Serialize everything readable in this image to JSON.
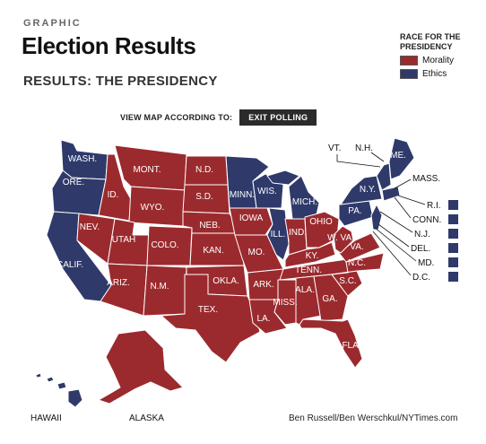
{
  "header": {
    "kicker": "GRAPHIC",
    "title": "Election Results",
    "subtitle": "RESULTS: THE PRESIDENCY"
  },
  "legend": {
    "title_line1": "RACE FOR THE",
    "title_line2": "PRESIDENCY",
    "items": [
      {
        "label": "Morality",
        "color": "#9b2a2e"
      },
      {
        "label": "Ethics",
        "color": "#2f3a6b"
      }
    ]
  },
  "viewmap": {
    "label": "VIEW MAP ACCORDING TO:",
    "button_label": "EXIT POLLING"
  },
  "colors": {
    "morality": "#9b2a2e",
    "ethics": "#2f3a6b"
  },
  "states": {
    "wash": "WASH.",
    "ore": "ORE.",
    "calif": "CALIF.",
    "nev": "NEV.",
    "id": "ID.",
    "mont": "MONT.",
    "wyo": "WYO.",
    "utah": "UTAH",
    "ariz": "ARIZ.",
    "colo": "COLO.",
    "nm": "N.M.",
    "nd": "N.D.",
    "sd": "S.D.",
    "neb": "NEB.",
    "kan": "KAN.",
    "okla": "OKLA.",
    "tex": "TEX.",
    "minn": "MINN.",
    "iowa": "IOWA",
    "mo": "MO.",
    "ark": "ARK.",
    "la": "LA.",
    "wis": "WIS.",
    "ill": "ILL.",
    "mich": "MICH.",
    "ind": "IND.",
    "ohio": "OHIO",
    "ky": "KY.",
    "tenn": "TENN.",
    "miss": "MISS.",
    "ala": "ALA.",
    "ga": "GA.",
    "fla": "FLA.",
    "sc": "S.C.",
    "nc": "N.C.",
    "va": "VA.",
    "wv": "W. VA.",
    "pa": "PA.",
    "ny": "N.Y.",
    "me": "ME."
  },
  "callouts": {
    "vt": "VT.",
    "nh": "N.H.",
    "mass": "MASS.",
    "ri": "R.I.",
    "conn": "CONN.",
    "nj": "N.J.",
    "del": "DEL.",
    "md": "MD.",
    "dc": "D.C."
  },
  "insets": {
    "hawaii": "HAWAII",
    "alaska": "ALASKA"
  },
  "credit": "Ben Russell/Ben Werschkul/NYTimes.com"
}
